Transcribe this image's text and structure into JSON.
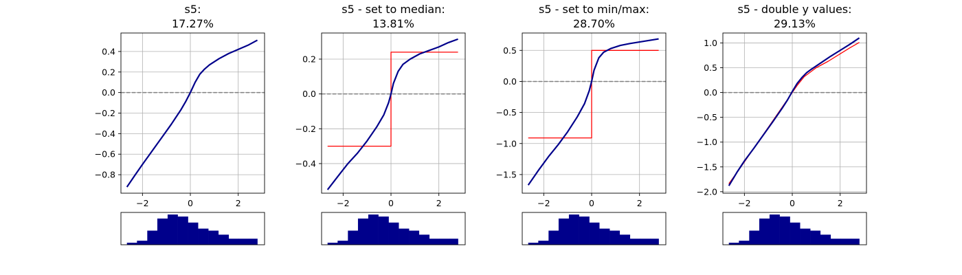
{
  "figure": {
    "background": "#ffffff"
  },
  "colors": {
    "shap_curve": "#00008b",
    "approx": "#ff0000",
    "zero_line": "#808080",
    "grid": "#b0b0b0",
    "histogram": "#00008b"
  },
  "chart_data": [
    {
      "type": "line",
      "title_line1": "s5:",
      "title_line2": "17.27%",
      "xlim": [
        -2.9,
        3.1
      ],
      "ylim": [
        -0.98,
        0.58
      ],
      "xticks": [
        -2,
        0,
        2
      ],
      "yticks": [
        -0.8,
        -0.6,
        -0.4,
        -0.2,
        0.0,
        0.2,
        0.4
      ],
      "ytick_labels": [
        "−0.8",
        "−0.6",
        "−0.4",
        "−0.2",
        "0.0",
        "0.2",
        "0.4"
      ],
      "xtick_labels": [
        "−2",
        "0",
        "2"
      ],
      "series": [
        {
          "role": "shap",
          "x": [
            -2.65,
            -2.3,
            -2.0,
            -1.6,
            -1.2,
            -0.8,
            -0.4,
            -0.2,
            0.0,
            0.2,
            0.4,
            0.6,
            0.8,
            1.2,
            1.6,
            2.0,
            2.4,
            2.8
          ],
          "y": [
            -0.92,
            -0.8,
            -0.7,
            -0.57,
            -0.44,
            -0.31,
            -0.17,
            -0.09,
            0.0,
            0.1,
            0.18,
            0.23,
            0.27,
            0.33,
            0.38,
            0.42,
            0.46,
            0.51
          ]
        }
      ],
      "histogram": {
        "edges": [
          -2.65,
          -2.23,
          -1.8,
          -1.38,
          -0.95,
          -0.53,
          -0.1,
          0.32,
          0.75,
          1.17,
          1.6,
          2.02,
          2.45,
          2.8
        ],
        "counts": [
          1,
          2,
          7,
          13,
          15,
          14,
          11,
          8,
          7,
          5,
          3,
          3,
          3
        ]
      }
    },
    {
      "type": "line",
      "title_line1": "s5 - set to median:",
      "title_line2": "13.81%",
      "xlim": [
        -2.9,
        3.1
      ],
      "ylim": [
        -0.57,
        0.35
      ],
      "xticks": [
        -2,
        0,
        2
      ],
      "yticks": [
        -0.4,
        -0.2,
        0.0,
        0.2
      ],
      "ytick_labels": [
        "−0.4",
        "−0.2",
        "0.0",
        "0.2"
      ],
      "xtick_labels": [
        "−2",
        "0",
        "2"
      ],
      "series": [
        {
          "role": "approx",
          "x": [
            -2.65,
            0.0,
            0.0,
            2.8
          ],
          "y": [
            -0.3,
            -0.3,
            0.24,
            0.24
          ]
        },
        {
          "role": "shap",
          "x": [
            -2.65,
            -2.2,
            -1.8,
            -1.4,
            -1.0,
            -0.6,
            -0.3,
            -0.1,
            0.0,
            0.1,
            0.3,
            0.5,
            0.8,
            1.2,
            1.6,
            2.0,
            2.4,
            2.8
          ],
          "y": [
            -0.55,
            -0.47,
            -0.4,
            -0.34,
            -0.27,
            -0.19,
            -0.12,
            -0.05,
            0.0,
            0.06,
            0.13,
            0.17,
            0.2,
            0.23,
            0.25,
            0.27,
            0.295,
            0.315
          ]
        }
      ],
      "histogram": {
        "edges": [
          -2.65,
          -2.23,
          -1.8,
          -1.38,
          -0.95,
          -0.53,
          -0.1,
          0.32,
          0.75,
          1.17,
          1.6,
          2.02,
          2.45,
          2.8
        ],
        "counts": [
          1,
          2,
          7,
          13,
          15,
          14,
          11,
          8,
          7,
          5,
          3,
          3,
          3
        ]
      }
    },
    {
      "type": "line",
      "title_line1": "s5 - set to min/max:",
      "title_line2": "28.70%",
      "xlim": [
        -2.9,
        3.1
      ],
      "ylim": [
        -1.8,
        0.78
      ],
      "xticks": [
        -2,
        0,
        2
      ],
      "yticks": [
        -1.5,
        -1.0,
        -0.5,
        0.0,
        0.5
      ],
      "ytick_labels": [
        "−1.5",
        "−1.0",
        "−0.5",
        "0.0",
        "0.5"
      ],
      "xtick_labels": [
        "−2",
        "0",
        "2"
      ],
      "series": [
        {
          "role": "approx",
          "x": [
            -2.65,
            0.0,
            0.0,
            2.8
          ],
          "y": [
            -0.91,
            -0.91,
            0.5,
            0.5
          ]
        },
        {
          "role": "shap",
          "x": [
            -2.65,
            -2.2,
            -1.8,
            -1.4,
            -1.0,
            -0.6,
            -0.3,
            -0.1,
            0.0,
            0.1,
            0.3,
            0.5,
            0.8,
            1.2,
            1.6,
            2.0,
            2.4,
            2.8
          ],
          "y": [
            -1.67,
            -1.42,
            -1.21,
            -1.02,
            -0.81,
            -0.57,
            -0.36,
            -0.15,
            0.0,
            0.18,
            0.38,
            0.47,
            0.53,
            0.58,
            0.61,
            0.635,
            0.66,
            0.685
          ]
        }
      ],
      "histogram": {
        "edges": [
          -2.65,
          -2.23,
          -1.8,
          -1.38,
          -0.95,
          -0.53,
          -0.1,
          0.32,
          0.75,
          1.17,
          1.6,
          2.02,
          2.45,
          2.8
        ],
        "counts": [
          1,
          2,
          7,
          13,
          15,
          14,
          11,
          8,
          7,
          5,
          3,
          3,
          3
        ]
      }
    },
    {
      "type": "line",
      "title_line1": "s5 - double y values:",
      "title_line2": "29.13%",
      "xlim": [
        -2.9,
        3.1
      ],
      "ylim": [
        -2.03,
        1.2
      ],
      "xticks": [
        -2,
        0,
        2
      ],
      "yticks": [
        -2.0,
        -1.5,
        -1.0,
        -0.5,
        0.0,
        0.5,
        1.0
      ],
      "ytick_labels": [
        "−2.0",
        "−1.5",
        "−1.0",
        "−0.5",
        "0.0",
        "0.5",
        "1.0"
      ],
      "xtick_labels": [
        "−2",
        "0",
        "2"
      ],
      "series": [
        {
          "role": "approx",
          "x": [
            -2.65,
            -2.0,
            -1.0,
            0.0,
            0.2,
            0.5,
            1.0,
            1.5,
            2.0,
            2.4,
            2.8
          ],
          "y": [
            -1.84,
            -1.4,
            -0.7,
            0.0,
            0.14,
            0.32,
            0.5,
            0.63,
            0.78,
            0.9,
            1.01
          ]
        },
        {
          "role": "shap",
          "x": [
            -2.65,
            -2.3,
            -2.0,
            -1.6,
            -1.2,
            -0.8,
            -0.4,
            -0.2,
            0.0,
            0.2,
            0.4,
            0.6,
            0.8,
            1.2,
            1.6,
            2.0,
            2.4,
            2.8
          ],
          "y": [
            -1.88,
            -1.6,
            -1.38,
            -1.12,
            -0.85,
            -0.58,
            -0.3,
            -0.15,
            0.02,
            0.18,
            0.3,
            0.4,
            0.47,
            0.6,
            0.73,
            0.85,
            0.97,
            1.1
          ]
        }
      ],
      "histogram": {
        "edges": [
          -2.65,
          -2.23,
          -1.8,
          -1.38,
          -0.95,
          -0.53,
          -0.1,
          0.32,
          0.75,
          1.17,
          1.6,
          2.02,
          2.45,
          2.8
        ],
        "counts": [
          1,
          2,
          7,
          13,
          15,
          14,
          11,
          8,
          7,
          5,
          3,
          3,
          3
        ]
      }
    }
  ]
}
